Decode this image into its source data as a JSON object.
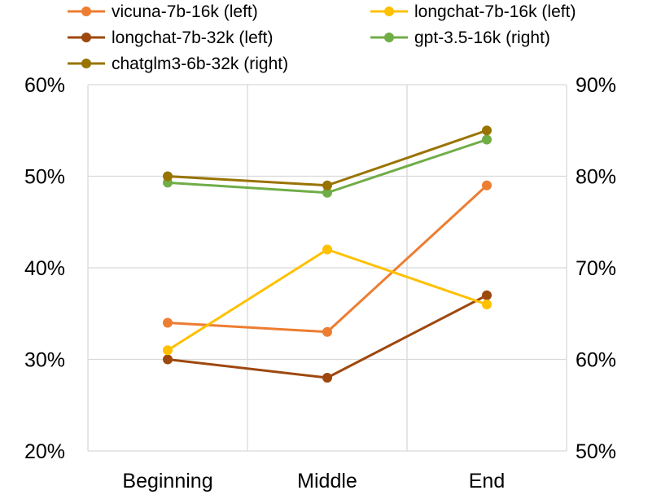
{
  "chart_data": {
    "type": "line",
    "categories": [
      "Beginning",
      "Middle",
      "End"
    ],
    "left_axis": {
      "ylim": [
        0.2,
        0.6
      ],
      "ticks": [
        "20%",
        "30%",
        "40%",
        "50%",
        "60%"
      ]
    },
    "right_axis": {
      "ylim": [
        0.5,
        0.9
      ],
      "ticks": [
        "50%",
        "60%",
        "70%",
        "80%",
        "90%"
      ]
    },
    "grid": true,
    "legend_position": "top",
    "series": [
      {
        "name": "vicuna-7b-16k (left)",
        "axis": "left",
        "color": "#ED7D31",
        "values": [
          0.34,
          0.33,
          0.49
        ]
      },
      {
        "name": "longchat-7b-16k (left)",
        "axis": "left",
        "color": "#FFC000",
        "values": [
          0.31,
          0.42,
          0.36
        ]
      },
      {
        "name": "longchat-7b-32k (left)",
        "axis": "left",
        "color": "#9E480E",
        "values": [
          0.3,
          0.28,
          0.37
        ]
      },
      {
        "name": "gpt-3.5-16k (right)",
        "axis": "right",
        "color": "#70AD47",
        "values": [
          0.793,
          0.782,
          0.84
        ]
      },
      {
        "name": "chatglm3-6b-32k  (right)",
        "axis": "right",
        "color": "#997300",
        "values": [
          0.8,
          0.79,
          0.85
        ]
      }
    ]
  }
}
